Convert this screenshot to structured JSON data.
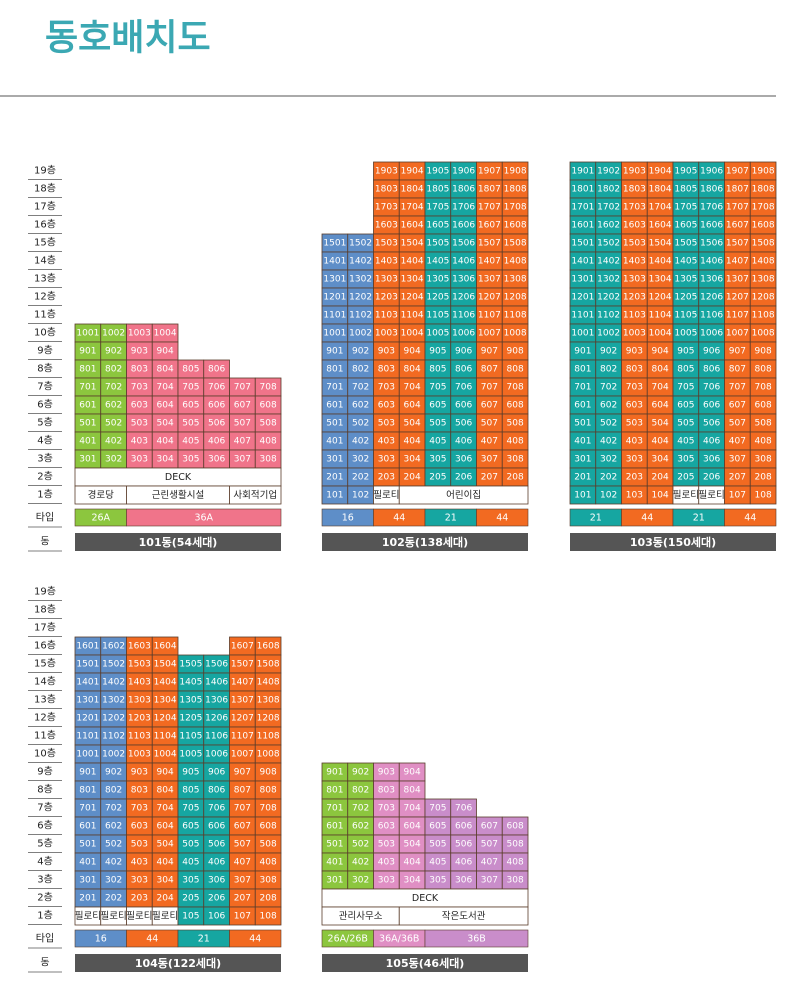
{
  "title": "동호배치도",
  "groups": [
    {
      "floor_labels": [
        "19층",
        "18층",
        "17층",
        "16층",
        "15층",
        "14층",
        "13층",
        "12층",
        "11층",
        "10층",
        "9층",
        "8층",
        "7층",
        "6층",
        "5층",
        "4층",
        "3층",
        "2층",
        "1층"
      ],
      "type_label": "타입",
      "building_label": "동",
      "buildings": [
        {
          "name": "101동(54세대)",
          "column_colors": [
            "#8cc63e",
            "#8cc63e",
            "#f0748a",
            "#f0748a",
            "#f0748a",
            "#f0748a",
            "#f0748a",
            "#f0748a"
          ],
          "types": [
            {
              "label": "26A",
              "span": 2
            },
            {
              "label": "36A",
              "span": 6
            }
          ],
          "rows": [
            [],
            [],
            [],
            [],
            [],
            [],
            [],
            [],
            [],
            [
              "1001",
              "1002",
              "1003",
              "1004"
            ],
            [
              "901",
              "902",
              "903",
              "904"
            ],
            [
              "801",
              "802",
              "803",
              "804",
              "805",
              "806"
            ],
            [
              "701",
              "702",
              "703",
              "704",
              "705",
              "706",
              "707",
              "708"
            ],
            [
              "601",
              "602",
              "603",
              "604",
              "605",
              "606",
              "607",
              "608"
            ],
            [
              "501",
              "502",
              "503",
              "504",
              "505",
              "506",
              "507",
              "508"
            ],
            [
              "401",
              "402",
              "403",
              "404",
              "405",
              "406",
              "407",
              "408"
            ],
            [
              "301",
              "302",
              "303",
              "304",
              "305",
              "306",
              "307",
              "308"
            ],
            [
              {
                "text": "DECK",
                "span": 8
              }
            ],
            [
              {
                "text": "경로당",
                "span": 2
              },
              {
                "text": "근린생활시설",
                "span": 4
              },
              {
                "text": "사회적기업",
                "span": 2
              }
            ]
          ]
        },
        {
          "name": "102동(138세대)",
          "column_colors": [
            "#5e8ec8",
            "#5e8ec8",
            "#f26a21",
            "#f26a21",
            "#16a6a1",
            "#16a6a1",
            "#f26a21",
            "#f26a21"
          ],
          "types": [
            {
              "label": "16",
              "span": 2
            },
            {
              "label": "44",
              "span": 2
            },
            {
              "label": "21",
              "span": 2
            },
            {
              "label": "44",
              "span": 2
            }
          ],
          "rows": [
            [
              null,
              null,
              "1903",
              "1904",
              "1905",
              "1906",
              "1907",
              "1908"
            ],
            [
              null,
              null,
              "1803",
              "1804",
              "1805",
              "1806",
              "1807",
              "1808"
            ],
            [
              null,
              null,
              "1703",
              "1704",
              "1705",
              "1706",
              "1707",
              "1708"
            ],
            [
              null,
              null,
              "1603",
              "1604",
              "1605",
              "1606",
              "1607",
              "1608"
            ],
            [
              "1501",
              "1502",
              "1503",
              "1504",
              "1505",
              "1506",
              "1507",
              "1508"
            ],
            [
              "1401",
              "1402",
              "1403",
              "1404",
              "1405",
              "1406",
              "1407",
              "1408"
            ],
            [
              "1301",
              "1302",
              "1303",
              "1304",
              "1305",
              "1306",
              "1307",
              "1308"
            ],
            [
              "1201",
              "1202",
              "1203",
              "1204",
              "1205",
              "1206",
              "1207",
              "1208"
            ],
            [
              "1101",
              "1102",
              "1103",
              "1104",
              "1105",
              "1106",
              "1107",
              "1108"
            ],
            [
              "1001",
              "1002",
              "1003",
              "1004",
              "1005",
              "1006",
              "1007",
              "1008"
            ],
            [
              "901",
              "902",
              "903",
              "904",
              "905",
              "906",
              "907",
              "908"
            ],
            [
              "801",
              "802",
              "803",
              "804",
              "805",
              "806",
              "807",
              "808"
            ],
            [
              "701",
              "702",
              "703",
              "704",
              "705",
              "706",
              "707",
              "708"
            ],
            [
              "601",
              "602",
              "603",
              "604",
              "605",
              "606",
              "607",
              "608"
            ],
            [
              "501",
              "502",
              "503",
              "504",
              "505",
              "506",
              "507",
              "508"
            ],
            [
              "401",
              "402",
              "403",
              "404",
              "405",
              "406",
              "407",
              "408"
            ],
            [
              "301",
              "302",
              "303",
              "304",
              "305",
              "306",
              "307",
              "308"
            ],
            [
              "201",
              "202",
              "203",
              "204",
              "205",
              "206",
              "207",
              "208"
            ],
            [
              "101",
              "102",
              {
                "text": "필로티"
              },
              {
                "text": "어린이집",
                "span": 5
              }
            ]
          ]
        },
        {
          "name": "103동(150세대)",
          "column_colors": [
            "#16a6a1",
            "#16a6a1",
            "#f26a21",
            "#f26a21",
            "#16a6a1",
            "#16a6a1",
            "#f26a21",
            "#f26a21"
          ],
          "types": [
            {
              "label": "21",
              "span": 2
            },
            {
              "label": "44",
              "span": 2
            },
            {
              "label": "21",
              "span": 2
            },
            {
              "label": "44",
              "span": 2
            }
          ],
          "rows": [
            [
              "1901",
              "1902",
              "1903",
              "1904",
              "1905",
              "1906",
              "1907",
              "1908"
            ],
            [
              "1801",
              "1802",
              "1803",
              "1804",
              "1805",
              "1806",
              "1807",
              "1808"
            ],
            [
              "1701",
              "1702",
              "1703",
              "1704",
              "1705",
              "1706",
              "1707",
              "1708"
            ],
            [
              "1601",
              "1602",
              "1603",
              "1604",
              "1605",
              "1606",
              "1607",
              "1608"
            ],
            [
              "1501",
              "1502",
              "1503",
              "1504",
              "1505",
              "1506",
              "1507",
              "1508"
            ],
            [
              "1401",
              "1402",
              "1403",
              "1404",
              "1405",
              "1406",
              "1407",
              "1408"
            ],
            [
              "1301",
              "1302",
              "1303",
              "1304",
              "1305",
              "1306",
              "1307",
              "1308"
            ],
            [
              "1201",
              "1202",
              "1203",
              "1204",
              "1205",
              "1206",
              "1207",
              "1208"
            ],
            [
              "1101",
              "1102",
              "1103",
              "1104",
              "1105",
              "1106",
              "1107",
              "1108"
            ],
            [
              "1001",
              "1002",
              "1003",
              "1004",
              "1005",
              "1006",
              "1007",
              "1008"
            ],
            [
              "901",
              "902",
              "903",
              "904",
              "905",
              "906",
              "907",
              "908"
            ],
            [
              "801",
              "802",
              "803",
              "804",
              "805",
              "806",
              "807",
              "808"
            ],
            [
              "701",
              "702",
              "703",
              "704",
              "705",
              "706",
              "707",
              "708"
            ],
            [
              "601",
              "602",
              "603",
              "604",
              "605",
              "606",
              "607",
              "608"
            ],
            [
              "501",
              "502",
              "503",
              "504",
              "505",
              "506",
              "507",
              "508"
            ],
            [
              "401",
              "402",
              "403",
              "404",
              "405",
              "406",
              "407",
              "408"
            ],
            [
              "301",
              "302",
              "303",
              "304",
              "305",
              "306",
              "307",
              "308"
            ],
            [
              "201",
              "202",
              "203",
              "204",
              "205",
              "206",
              "207",
              "208"
            ],
            [
              "101",
              "102",
              "103",
              "104",
              {
                "text": "필로티"
              },
              {
                "text": "필로티"
              },
              "107",
              "108"
            ]
          ]
        }
      ]
    },
    {
      "floor_labels": [
        "19층",
        "18층",
        "17층",
        "16층",
        "15층",
        "14층",
        "13층",
        "12층",
        "11층",
        "10층",
        "9층",
        "8층",
        "7층",
        "6층",
        "5층",
        "4층",
        "3층",
        "2층",
        "1층"
      ],
      "type_label": "타입",
      "building_label": "동",
      "buildings": [
        {
          "name": "104동(122세대)",
          "column_colors": [
            "#5e8ec8",
            "#5e8ec8",
            "#f26a21",
            "#f26a21",
            "#16a6a1",
            "#16a6a1",
            "#f26a21",
            "#f26a21"
          ],
          "types": [
            {
              "label": "16",
              "span": 2
            },
            {
              "label": "44",
              "span": 2
            },
            {
              "label": "21",
              "span": 2
            },
            {
              "label": "44",
              "span": 2
            }
          ],
          "rows": [
            [],
            [],
            [],
            [
              "1601",
              "1602",
              "1603",
              "1604",
              null,
              null,
              "1607",
              "1608"
            ],
            [
              "1501",
              "1502",
              "1503",
              "1504",
              "1505",
              "1506",
              "1507",
              "1508"
            ],
            [
              "1401",
              "1402",
              "1403",
              "1404",
              "1405",
              "1406",
              "1407",
              "1408"
            ],
            [
              "1301",
              "1302",
              "1303",
              "1304",
              "1305",
              "1306",
              "1307",
              "1308"
            ],
            [
              "1201",
              "1202",
              "1203",
              "1204",
              "1205",
              "1206",
              "1207",
              "1208"
            ],
            [
              "1101",
              "1102",
              "1103",
              "1104",
              "1105",
              "1106",
              "1107",
              "1108"
            ],
            [
              "1001",
              "1002",
              "1003",
              "1004",
              "1005",
              "1006",
              "1007",
              "1008"
            ],
            [
              "901",
              "902",
              "903",
              "904",
              "905",
              "906",
              "907",
              "908"
            ],
            [
              "801",
              "802",
              "803",
              "804",
              "805",
              "806",
              "807",
              "808"
            ],
            [
              "701",
              "702",
              "703",
              "704",
              "705",
              "706",
              "707",
              "708"
            ],
            [
              "601",
              "602",
              "603",
              "604",
              "605",
              "606",
              "607",
              "608"
            ],
            [
              "501",
              "502",
              "503",
              "504",
              "505",
              "506",
              "507",
              "508"
            ],
            [
              "401",
              "402",
              "403",
              "404",
              "405",
              "406",
              "407",
              "408"
            ],
            [
              "301",
              "302",
              "303",
              "304",
              "305",
              "306",
              "307",
              "308"
            ],
            [
              "201",
              "202",
              "203",
              "204",
              "205",
              "206",
              "207",
              "208"
            ],
            [
              {
                "text": "필로티"
              },
              {
                "text": "필로티"
              },
              {
                "text": "필로티"
              },
              {
                "text": "필로티"
              },
              "105",
              "106",
              "107",
              "108"
            ]
          ]
        },
        {
          "name": "105동(46세대)",
          "column_colors": [
            "#8cc63e",
            "#8cc63e",
            "#e08fc4",
            "#e08fc4",
            "#c98dca",
            "#c98dca",
            "#c98dca",
            "#c98dca"
          ],
          "types": [
            {
              "label": "26A/26B",
              "span": 2
            },
            {
              "label": "36A/36B",
              "span": 2
            },
            {
              "label": "36B",
              "span": 4
            }
          ],
          "rows": [
            [],
            [],
            [],
            [],
            [],
            [],
            [],
            [],
            [],
            [],
            [
              "901",
              "902",
              "903",
              "904"
            ],
            [
              "801",
              "802",
              "803",
              "804"
            ],
            [
              "701",
              "702",
              "703",
              "704",
              "705",
              "706"
            ],
            [
              "601",
              "602",
              "603",
              "604",
              "605",
              "606",
              "607",
              "608"
            ],
            [
              "501",
              "502",
              "503",
              "504",
              "505",
              "506",
              "507",
              "508"
            ],
            [
              "401",
              "402",
              "403",
              "404",
              "405",
              "406",
              "407",
              "408"
            ],
            [
              "301",
              "302",
              "303",
              "304",
              "305",
              "306",
              "307",
              "308"
            ],
            [
              {
                "text": "DECK",
                "span": 8
              }
            ],
            [
              {
                "text": "관리사무소",
                "span": 3
              },
              {
                "text": "작은도서관",
                "span": 5
              }
            ]
          ]
        }
      ]
    }
  ]
}
